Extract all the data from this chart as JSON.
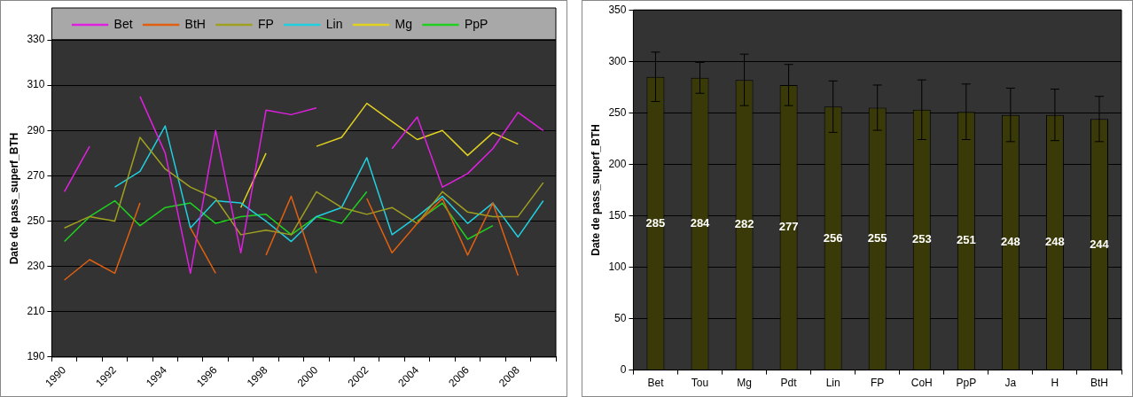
{
  "chart_data": [
    {
      "type": "line",
      "ylabel": "Date de pass_superf_BTH",
      "categories": [
        "1990",
        null,
        "1992",
        null,
        "1994",
        null,
        "1996",
        null,
        "1998",
        null,
        "2000",
        null,
        "2002",
        null,
        "2004",
        null,
        "2006",
        null,
        "2008",
        null
      ],
      "series": [
        {
          "name": "Bet",
          "color": "#e020e0",
          "values": [
            263,
            283,
            null,
            305,
            280,
            227,
            290,
            236,
            299,
            297,
            300,
            null,
            null,
            282,
            296,
            265,
            271,
            282,
            298,
            290
          ]
        },
        {
          "name": "BtH",
          "color": "#e06010",
          "values": [
            224,
            233,
            227,
            258,
            null,
            247,
            227,
            null,
            235,
            261,
            227,
            null,
            260,
            236,
            249,
            260,
            235,
            258,
            226,
            null
          ]
        },
        {
          "name": "FP",
          "color": "#a0a020",
          "values": [
            247,
            252,
            250,
            287,
            273,
            265,
            260,
            244,
            246,
            244,
            263,
            256,
            253,
            256,
            249,
            263,
            254,
            252,
            252,
            267
          ]
        },
        {
          "name": "Lin",
          "color": "#20d0e0",
          "values": [
            null,
            null,
            265,
            272,
            292,
            247,
            259,
            258,
            250,
            241,
            252,
            256,
            278,
            244,
            252,
            261,
            249,
            258,
            243,
            259
          ]
        },
        {
          "name": "Mg",
          "color": "#e0d020",
          "values": [
            null,
            null,
            null,
            null,
            null,
            null,
            null,
            256,
            280,
            null,
            283,
            287,
            302,
            294,
            286,
            290,
            279,
            289,
            284,
            null
          ]
        },
        {
          "name": "PpP",
          "color": "#20d020",
          "values": [
            241,
            252,
            259,
            248,
            256,
            258,
            249,
            252,
            253,
            244,
            252,
            249,
            263,
            null,
            250,
            258,
            242,
            248,
            null,
            null
          ]
        }
      ],
      "ylim": [
        190,
        330
      ],
      "yticks": [
        190,
        210,
        230,
        250,
        270,
        290,
        310,
        330
      ],
      "grid": "y",
      "legend": "top",
      "marker": "none"
    },
    {
      "type": "bar",
      "ylabel": "Date de pass_superf_BTH",
      "categories": [
        "Bet",
        "Tou",
        "Mg",
        "Pdt",
        "Lin",
        "FP",
        "CoH",
        "PpP",
        "Ja",
        "H",
        "BtH"
      ],
      "values": [
        285,
        284,
        282,
        277,
        256,
        255,
        253,
        251,
        248,
        248,
        244
      ],
      "color": "#3a3a08",
      "errors": [
        24,
        15,
        25,
        20,
        25,
        22,
        29,
        27,
        26,
        25,
        22
      ],
      "ylim": [
        0,
        350
      ],
      "yticks": [
        0,
        50,
        100,
        150,
        200,
        250,
        300,
        350
      ],
      "grid": "y",
      "data_labels": true
    }
  ]
}
